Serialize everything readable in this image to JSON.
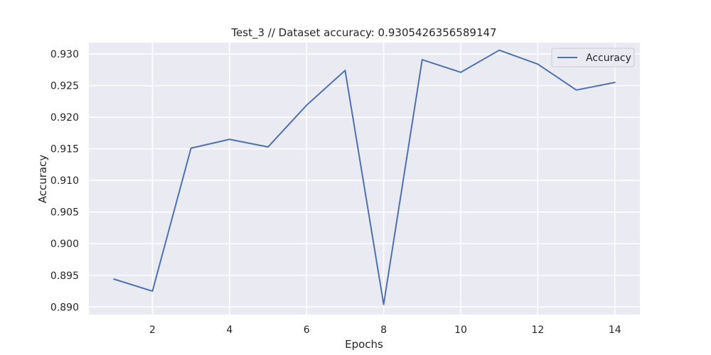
{
  "chart_data": {
    "type": "line",
    "title": "Test_3 // Dataset accuracy: 0.9305426356589147",
    "xlabel": "Epochs",
    "ylabel": "Accuracy",
    "x": [
      1,
      2,
      3,
      4,
      5,
      6,
      7,
      8,
      9,
      10,
      11,
      12,
      13,
      14
    ],
    "xticks": [
      2,
      4,
      6,
      8,
      10,
      12,
      14
    ],
    "xtick_labels": [
      "2",
      "4",
      "6",
      "8",
      "10",
      "12",
      "14"
    ],
    "yticks": [
      0.89,
      0.895,
      0.9,
      0.905,
      0.91,
      0.915,
      0.92,
      0.925,
      0.93
    ],
    "ytick_labels": [
      "0.890",
      "0.895",
      "0.900",
      "0.905",
      "0.910",
      "0.915",
      "0.920",
      "0.925",
      "0.930"
    ],
    "xlim": [
      0.35,
      14.65
    ],
    "ylim": [
      0.8888,
      0.9318
    ],
    "grid": true,
    "legend_position": "top-right",
    "series": [
      {
        "name": "Accuracy",
        "color": "#4c72b0",
        "values": [
          0.8944,
          0.8925,
          0.9151,
          0.9165,
          0.9153,
          0.9219,
          0.9274,
          0.8904,
          0.9291,
          0.9271,
          0.9306,
          0.9284,
          0.9243,
          0.9255
        ]
      }
    ],
    "colors": {
      "plot_background": "#eaeaf2",
      "grid": "#ffffff",
      "text": "#262626"
    }
  }
}
